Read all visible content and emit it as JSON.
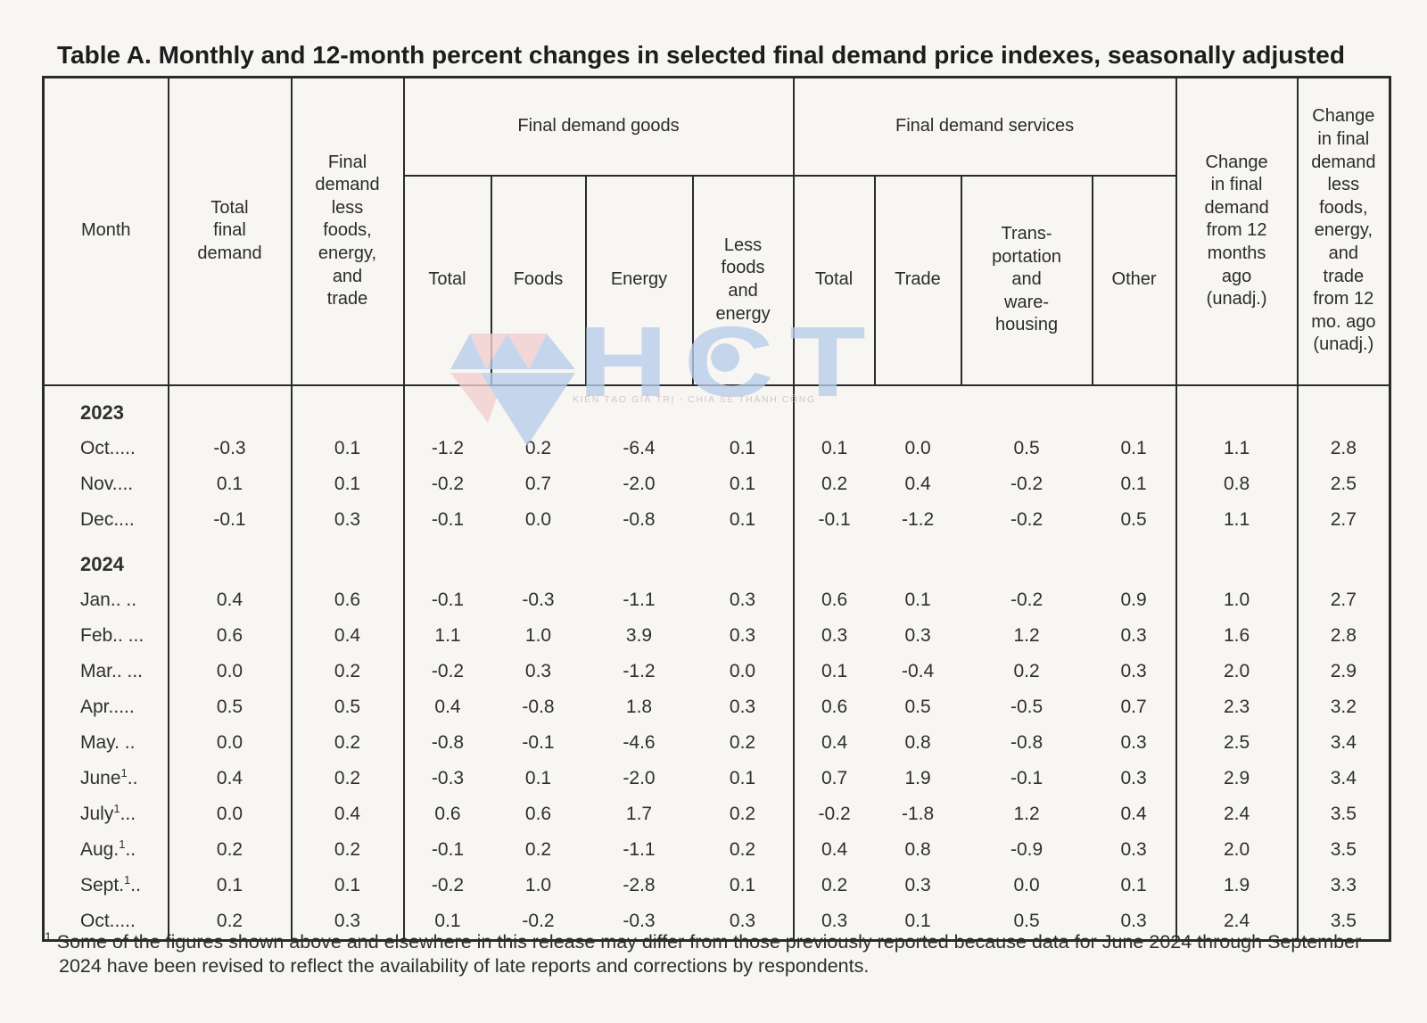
{
  "title": "Table A. Monthly and 12-month percent changes in selected final demand price indexes, seasonally adjusted",
  "table": {
    "header": {
      "month": "Month",
      "total_final_demand": "Total\nfinal\ndemand",
      "fd_less_fet": "Final\ndemand\nless\nfoods,\nenergy,\nand\ntrade",
      "goods_group": "Final demand goods",
      "services_group": "Final demand services",
      "goods_cols": [
        "Total",
        "Foods",
        "Energy",
        "Less\nfoods\nand\nenergy"
      ],
      "services_cols": [
        "Total",
        "Trade",
        "Trans-\nportation\nand\nware-\nhousing",
        "Other"
      ],
      "change_12mo": "Change\nin final\ndemand\nfrom 12\nmonths\nago\n(unadj.)",
      "change_less_12mo": "Change\nin final\ndemand\nless\nfoods,\nenergy,\nand\ntrade\nfrom 12\nmo. ago\n(unadj.)"
    },
    "rows": [
      {
        "type": "year",
        "label": "2023"
      },
      {
        "type": "month",
        "pre": "Oct.....",
        "sup": "",
        "post": "",
        "values": [
          "-0.3",
          "0.1",
          "-1.2",
          "0.2",
          "-6.4",
          "0.1",
          "0.1",
          "0.0",
          "0.5",
          "0.1",
          "1.1",
          "2.8"
        ]
      },
      {
        "type": "month",
        "pre": "Nov....",
        "sup": "",
        "post": "",
        "values": [
          "0.1",
          "0.1",
          "-0.2",
          "0.7",
          "-2.0",
          "0.1",
          "0.2",
          "0.4",
          "-0.2",
          "0.1",
          "0.8",
          "2.5"
        ]
      },
      {
        "type": "month",
        "pre": "Dec....",
        "sup": "",
        "post": "",
        "values": [
          "-0.1",
          "0.3",
          "-0.1",
          "0.0",
          "-0.8",
          "0.1",
          "-0.1",
          "-1.2",
          "-0.2",
          "0.5",
          "1.1",
          "2.7"
        ]
      },
      {
        "type": "year",
        "label": "2024"
      },
      {
        "type": "month",
        "pre": "Jan.. ..",
        "sup": "",
        "post": "",
        "values": [
          "0.4",
          "0.6",
          "-0.1",
          "-0.3",
          "-1.1",
          "0.3",
          "0.6",
          "0.1",
          "-0.2",
          "0.9",
          "1.0",
          "2.7"
        ]
      },
      {
        "type": "month",
        "pre": "Feb.. ...",
        "sup": "",
        "post": "",
        "values": [
          "0.6",
          "0.4",
          "1.1",
          "1.0",
          "3.9",
          "0.3",
          "0.3",
          "0.3",
          "1.2",
          "0.3",
          "1.6",
          "2.8"
        ]
      },
      {
        "type": "month",
        "pre": "Mar.. ...",
        "sup": "",
        "post": "",
        "values": [
          "0.0",
          "0.2",
          "-0.2",
          "0.3",
          "-1.2",
          "0.0",
          "0.1",
          "-0.4",
          "0.2",
          "0.3",
          "2.0",
          "2.9"
        ]
      },
      {
        "type": "month",
        "pre": "Apr.....",
        "sup": "",
        "post": "",
        "values": [
          "0.5",
          "0.5",
          "0.4",
          "-0.8",
          "1.8",
          "0.3",
          "0.6",
          "0.5",
          "-0.5",
          "0.7",
          "2.3",
          "3.2"
        ]
      },
      {
        "type": "month",
        "pre": "May. ..",
        "sup": "",
        "post": "",
        "values": [
          "0.0",
          "0.2",
          "-0.8",
          "-0.1",
          "-4.6",
          "0.2",
          "0.4",
          "0.8",
          "-0.8",
          "0.3",
          "2.5",
          "3.4"
        ]
      },
      {
        "type": "month",
        "pre": "June",
        "sup": "1",
        "post": "..",
        "values": [
          "0.4",
          "0.2",
          "-0.3",
          "0.1",
          "-2.0",
          "0.1",
          "0.7",
          "1.9",
          "-0.1",
          "0.3",
          "2.9",
          "3.4"
        ]
      },
      {
        "type": "month",
        "pre": "July",
        "sup": "1",
        "post": "...",
        "values": [
          "0.0",
          "0.4",
          "0.6",
          "0.6",
          "1.7",
          "0.2",
          "-0.2",
          "-1.8",
          "1.2",
          "0.4",
          "2.4",
          "3.5"
        ]
      },
      {
        "type": "month",
        "pre": "Aug.",
        "sup": "1",
        "post": "..",
        "values": [
          "0.2",
          "0.2",
          "-0.1",
          "0.2",
          "-1.1",
          "0.2",
          "0.4",
          "0.8",
          "-0.9",
          "0.3",
          "2.0",
          "3.5"
        ]
      },
      {
        "type": "month",
        "pre": "Sept.",
        "sup": "1",
        "post": "..",
        "values": [
          "0.1",
          "0.1",
          "-0.2",
          "1.0",
          "-2.8",
          "0.1",
          "0.2",
          "0.3",
          "0.0",
          "0.1",
          "1.9",
          "3.3"
        ]
      },
      {
        "type": "month",
        "pre": "Oct.....",
        "sup": "",
        "post": "",
        "values": [
          "0.2",
          "0.3",
          "0.1",
          "-0.2",
          "-0.3",
          "0.3",
          "0.3",
          "0.1",
          "0.5",
          "0.3",
          "2.4",
          "3.5"
        ]
      }
    ]
  },
  "footnote": {
    "sup": "1",
    "text": " Some of the figures shown above and elsewhere in this release may differ from those previously reported because data for June 2024 through September 2024 have been revised to reflect the availability of late reports and corrections by respondents."
  },
  "watermark": {
    "letters": "HCT",
    "tagline": "KIẾN TẠO GIÁ TRỊ - CHIA SẺ THÀNH CÔNG",
    "blue": "#b7cde9",
    "pink": "#f3cfcf"
  }
}
